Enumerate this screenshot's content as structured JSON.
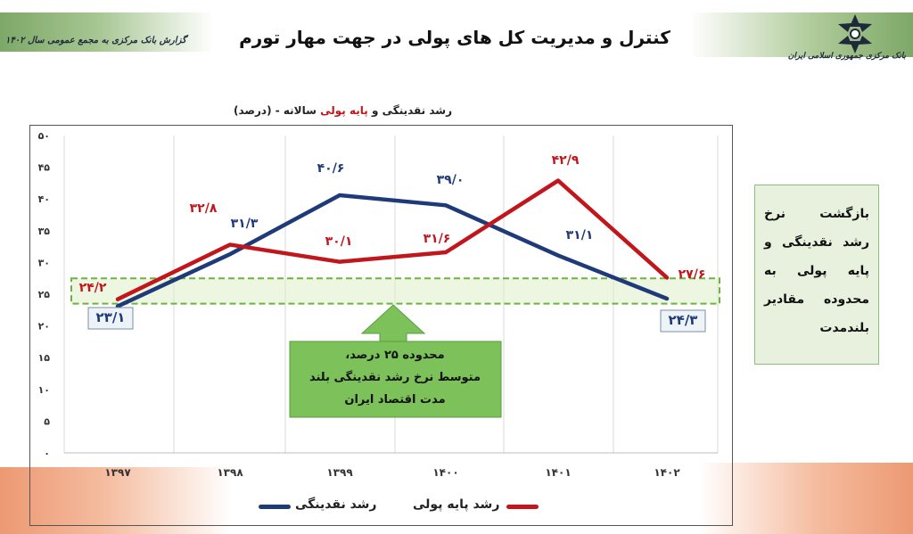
{
  "header": {
    "title": "کنترل و مدیریت کل های پولی در جهت مهار تورم",
    "report_label": "گزارش بانک مرکزی به مجمع عمومی سال ۱۴۰۲",
    "bank_name": "بانک مرکزی جمهوری اسلامی ایران"
  },
  "chart_title": {
    "part1": "رشد نقدینگی و ",
    "highlight": "پایه پولی",
    "part2": " سالانه  - (درصد)"
  },
  "side_note": "بازگشت نرخ رشد نقدینگی و پایه پولی به محدوده مقادیر بلندمدت",
  "band_note": [
    "محدوده ۲۵ درصد،",
    "متوسط نرخ رشد نقدینگی بلند",
    "مدت اقتصاد ایران"
  ],
  "colors": {
    "liquidity": "#1f3a78",
    "base_money": "#c0161c",
    "band": "#6cb33f",
    "callout": "#7cc15a"
  },
  "chart_data": {
    "type": "line",
    "categories": [
      "۱۳۹۷",
      "۱۳۹۸",
      "۱۳۹۹",
      "۱۴۰۰",
      "۱۴۰۱",
      "۱۴۰۲"
    ],
    "x": [
      1397,
      1398,
      1399,
      1400,
      1401,
      1402
    ],
    "ylim": [
      0,
      50
    ],
    "yticks": [
      0,
      5,
      10,
      15,
      20,
      25,
      30,
      35,
      40,
      45,
      50
    ],
    "ytick_labels": [
      "۰",
      "۵",
      "۱۰",
      "۱۵",
      "۲۰",
      "۲۵",
      "۳۰",
      "۳۵",
      "۴۰",
      "۴۵",
      "۵۰"
    ],
    "band_range": [
      23.5,
      27.5
    ],
    "series": [
      {
        "name": "رشد نقدینگی",
        "values": [
          23.1,
          31.3,
          40.6,
          39.0,
          31.1,
          24.3
        ],
        "labels": [
          "۲۳/۱",
          "۳۱/۳",
          "۴۰/۶",
          "۳۹/۰",
          "۳۱/۱",
          "۲۴/۳"
        ]
      },
      {
        "name": "رشد پایه پولی",
        "values": [
          24.2,
          32.8,
          30.1,
          31.6,
          42.9,
          27.6
        ],
        "labels": [
          "۲۴/۲",
          "۳۲/۸",
          "۳۰/۱",
          "۳۱/۶",
          "۴۲/۹",
          "۲۷/۶"
        ]
      }
    ]
  }
}
